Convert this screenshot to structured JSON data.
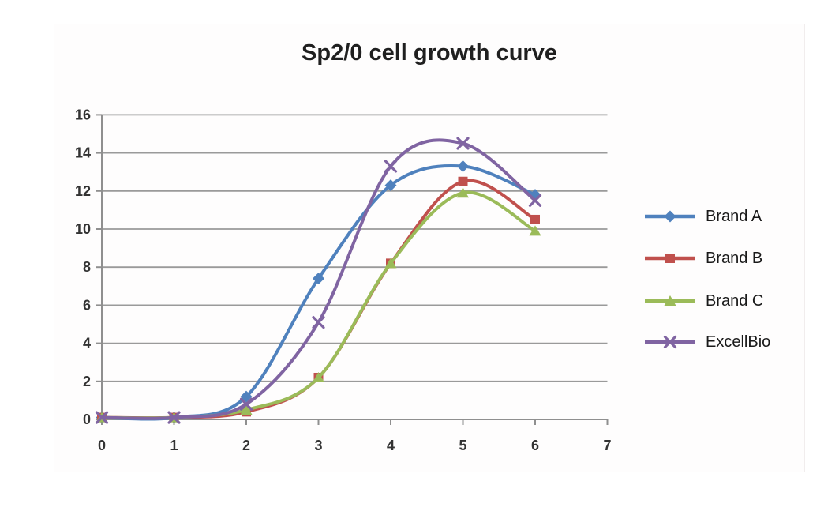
{
  "chart_data": {
    "type": "line",
    "title": "Sp2/0 cell growth curve",
    "xlabel": "",
    "ylabel": "",
    "x": [
      0,
      1,
      2,
      3,
      4,
      5,
      6
    ],
    "xticks": [
      0,
      1,
      2,
      3,
      4,
      5,
      6,
      7
    ],
    "xlim": [
      0,
      7
    ],
    "ylim": [
      0,
      16
    ],
    "ytick_step": 2,
    "grid": true,
    "smooth_lines": true,
    "legend_position": "right",
    "series": [
      {
        "name": "Brand A",
        "slug": "brand-a",
        "color": "#4F81BD",
        "marker": "diamond",
        "values": [
          0.1,
          0.1,
          1.2,
          7.4,
          12.3,
          13.3,
          11.8
        ]
      },
      {
        "name": "Brand B",
        "slug": "brand-b",
        "color": "#C0504D",
        "marker": "square",
        "values": [
          0.1,
          0.1,
          0.4,
          2.2,
          8.2,
          12.5,
          10.5
        ]
      },
      {
        "name": "Brand C",
        "slug": "brand-c",
        "color": "#9BBB59",
        "marker": "triangle",
        "values": [
          0.1,
          0.1,
          0.5,
          2.2,
          8.2,
          11.9,
          9.9
        ]
      },
      {
        "name": "ExcellBio",
        "slug": "excellbio",
        "color": "#8064A2",
        "marker": "x",
        "values": [
          0.1,
          0.1,
          0.8,
          5.1,
          13.3,
          14.5,
          11.5
        ]
      }
    ],
    "colors": {
      "grid": "#9a9a9a",
      "axis": "#8f8f8f",
      "tick_text": "#333333",
      "title_text": "#1f1f1f"
    }
  }
}
